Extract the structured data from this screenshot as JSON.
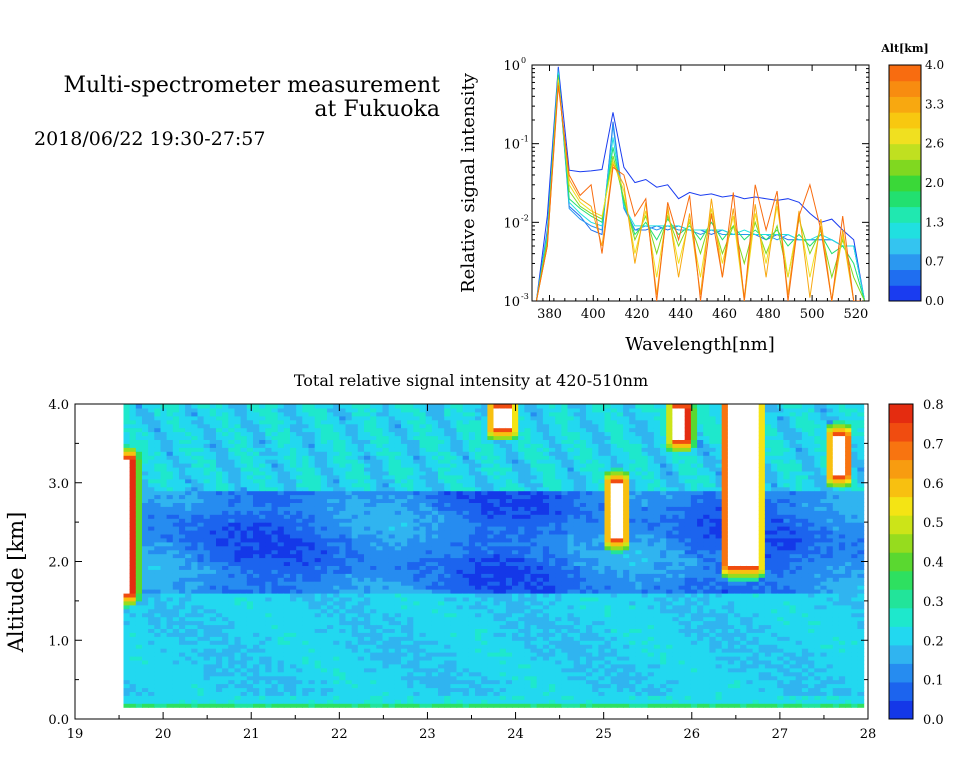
{
  "header": {
    "title_line1": "Multi-spectrometer measurement",
    "title_line2": "at Fukuoka",
    "subtitle": "2018/06/22 19:30-27:57"
  },
  "chart_data": [
    {
      "type": "line",
      "xlabel": "Wavelength[nm]",
      "ylabel": "Relative signal intensity",
      "xlim": [
        372,
        526
      ],
      "ylim": [
        0.001,
        1
      ],
      "yscale": "log",
      "xticks": [
        "380",
        "400",
        "420",
        "440",
        "460",
        "480",
        "500",
        "520"
      ],
      "yticks": [
        "10",
        "10",
        "10",
        "10"
      ],
      "ytick_exponents": [
        "-3",
        "-2",
        "-1",
        "0"
      ],
      "colorbar": {
        "title": "Alt[km]",
        "ticks": [
          "0.0",
          "0.7",
          "1.3",
          "2.0",
          "2.6",
          "3.3",
          "4.0"
        ],
        "colors": [
          "#1a3cf0",
          "#1f6ef0",
          "#2b98f0",
          "#34c4f0",
          "#20e0e0",
          "#20e8b0",
          "#22e070",
          "#3ad838",
          "#80d820",
          "#c0e020",
          "#f0e020",
          "#f8c810",
          "#f8a810",
          "#f88c10",
          "#f86c10"
        ]
      },
      "x": [
        374,
        379,
        384,
        389,
        394,
        399,
        404,
        409,
        414,
        419,
        424,
        429,
        434,
        439,
        444,
        449,
        454,
        459,
        464,
        469,
        474,
        479,
        484,
        489,
        494,
        499,
        504,
        509,
        514,
        519,
        524
      ],
      "series": [
        {
          "alt": 0.0,
          "color": "#1a3cf0",
          "values": [
            0.001,
            0.012,
            0.95,
            0.046,
            0.044,
            0.045,
            0.047,
            0.25,
            0.05,
            0.032,
            0.035,
            0.028,
            0.03,
            0.02,
            0.024,
            0.022,
            0.023,
            0.021,
            0.022,
            0.02,
            0.021,
            0.02,
            0.019,
            0.02,
            0.018,
            0.013,
            0.01,
            0.011,
            0.008,
            0.006,
            0.001
          ]
        },
        {
          "alt": 0.3,
          "color": "#1f6ef0",
          "values": [
            0.001,
            0.008,
            0.9,
            0.016,
            0.012,
            0.008,
            0.007,
            0.19,
            0.016,
            0.008,
            0.008,
            0.009,
            0.008,
            0.009,
            0.008,
            0.008,
            0.007,
            0.008,
            0.007,
            0.007,
            0.007,
            0.006,
            0.007,
            0.006,
            0.006,
            0.006,
            0.006,
            0.006,
            0.005,
            0.005,
            0.001
          ]
        },
        {
          "alt": 0.6,
          "color": "#2b98f0",
          "values": [
            0.001,
            0.007,
            0.85,
            0.015,
            0.011,
            0.009,
            0.008,
            0.17,
            0.015,
            0.008,
            0.009,
            0.008,
            0.009,
            0.008,
            0.008,
            0.007,
            0.008,
            0.007,
            0.007,
            0.007,
            0.007,
            0.007,
            0.006,
            0.007,
            0.006,
            0.006,
            0.006,
            0.006,
            0.005,
            0.005,
            0.001
          ]
        },
        {
          "alt": 1.0,
          "color": "#20e0e0",
          "values": [
            0.001,
            0.007,
            0.8,
            0.018,
            0.013,
            0.01,
            0.009,
            0.12,
            0.016,
            0.009,
            0.009,
            0.009,
            0.009,
            0.009,
            0.008,
            0.008,
            0.008,
            0.008,
            0.007,
            0.008,
            0.007,
            0.007,
            0.007,
            0.007,
            0.006,
            0.006,
            0.007,
            0.006,
            0.005,
            0.005,
            0.001
          ]
        },
        {
          "alt": 1.5,
          "color": "#22e070",
          "values": [
            0.001,
            0.006,
            0.75,
            0.02,
            0.015,
            0.012,
            0.01,
            0.09,
            0.018,
            0.007,
            0.01,
            0.006,
            0.011,
            0.007,
            0.009,
            0.006,
            0.01,
            0.006,
            0.009,
            0.006,
            0.008,
            0.006,
            0.008,
            0.005,
            0.007,
            0.005,
            0.007,
            0.004,
            0.005,
            0.003,
            0.001
          ]
        },
        {
          "alt": 2.0,
          "color": "#80d820",
          "values": [
            0.001,
            0.006,
            0.7,
            0.025,
            0.016,
            0.013,
            0.011,
            0.07,
            0.02,
            0.006,
            0.012,
            0.004,
            0.012,
            0.005,
            0.01,
            0.004,
            0.012,
            0.004,
            0.009,
            0.003,
            0.01,
            0.004,
            0.009,
            0.002,
            0.011,
            0.004,
            0.008,
            0.002,
            0.006,
            0.002,
            0.001
          ]
        },
        {
          "alt": 2.6,
          "color": "#f0e020",
          "values": [
            0.001,
            0.005,
            0.65,
            0.03,
            0.018,
            0.014,
            0.012,
            0.06,
            0.025,
            0.004,
            0.014,
            0.002,
            0.014,
            0.003,
            0.011,
            0.002,
            0.015,
            0.003,
            0.012,
            0.001,
            0.013,
            0.003,
            0.016,
            0.002,
            0.012,
            0.002,
            0.009,
            0.001,
            0.007,
            0.001,
            0.001
          ]
        },
        {
          "alt": 3.3,
          "color": "#f8a810",
          "values": [
            0.001,
            0.005,
            0.6,
            0.035,
            0.02,
            0.016,
            0.005,
            0.055,
            0.03,
            0.003,
            0.018,
            0.0012,
            0.016,
            0.002,
            0.013,
            0.0012,
            0.02,
            0.002,
            0.015,
            0.0011,
            0.017,
            0.002,
            0.02,
            0.0012,
            0.014,
            0.0011,
            0.011,
            0.001,
            0.008,
            0.001,
            0.001
          ]
        },
        {
          "alt": 4.0,
          "color": "#f86c10",
          "values": [
            0.001,
            0.005,
            0.55,
            0.04,
            0.022,
            0.03,
            0.004,
            0.05,
            0.04,
            0.012,
            0.02,
            0.001,
            0.018,
            0.006,
            0.022,
            0.001,
            0.013,
            0.002,
            0.024,
            0.001,
            0.03,
            0.008,
            0.025,
            0.001,
            0.012,
            0.03,
            0.008,
            0.001,
            0.012,
            0.001,
            0.001
          ]
        }
      ]
    },
    {
      "type": "heatmap",
      "title": "Total relative signal intensity at 420-510nm",
      "xlabel": "",
      "ylabel": "Altitude [km]",
      "xlim": [
        19,
        28
      ],
      "ylim": [
        0,
        4
      ],
      "xticks": [
        "19",
        "20",
        "21",
        "22",
        "23",
        "24",
        "25",
        "26",
        "27",
        "28"
      ],
      "yticks": [
        "0.0",
        "1.0",
        "2.0",
        "3.0",
        "4.0"
      ],
      "data_x_range": [
        19.55,
        27.95
      ],
      "data_y_range": [
        0.15,
        4.0
      ],
      "colorbar": {
        "ticks": [
          "0.0",
          "0.1",
          "0.2",
          "0.3",
          "0.4",
          "0.5",
          "0.6",
          "0.7",
          "0.8"
        ],
        "range": [
          0,
          0.8
        ],
        "colors": [
          "#1438e8",
          "#1c64ee",
          "#268cf0",
          "#30b4f0",
          "#22d8f0",
          "#1ee8cc",
          "#22e49a",
          "#2ee060",
          "#5ad830",
          "#96dc1e",
          "#cce418",
          "#f4e414",
          "#f8c010",
          "#f89c10",
          "#f87410",
          "#f04c10",
          "#e42c10"
        ]
      },
      "saturated_regions": [
        {
          "x": [
            26.4,
            26.75
          ],
          "y": [
            1.95,
            4.0
          ]
        },
        {
          "x": [
            25.08,
            25.22
          ],
          "y": [
            2.3,
            3.0
          ]
        },
        {
          "x": [
            19.55,
            19.65
          ],
          "y": [
            1.6,
            3.3
          ]
        },
        {
          "x": [
            27.6,
            27.75
          ],
          "y": [
            3.1,
            3.6
          ]
        },
        {
          "x": [
            25.8,
            25.95
          ],
          "y": [
            3.55,
            3.95
          ]
        },
        {
          "x": [
            23.75,
            23.95
          ],
          "y": [
            3.7,
            3.95
          ]
        }
      ]
    }
  ]
}
